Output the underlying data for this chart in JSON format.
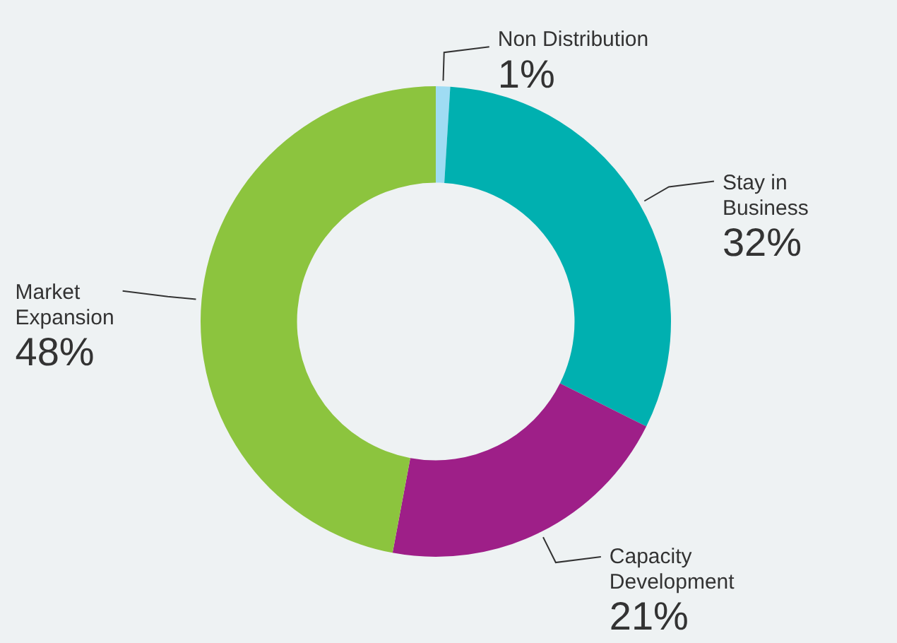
{
  "chart_data": {
    "type": "donut",
    "categories": [
      "Non Distribution",
      "Stay in Business",
      "Capacity Development",
      "Market Expansion"
    ],
    "values": [
      1,
      32,
      21,
      48
    ],
    "value_labels": [
      "1%",
      "32%",
      "21%",
      "48%"
    ],
    "colors": [
      "#9fdcf3",
      "#00b0b0",
      "#9e1f88",
      "#8cc43e"
    ],
    "legend": false
  }
}
